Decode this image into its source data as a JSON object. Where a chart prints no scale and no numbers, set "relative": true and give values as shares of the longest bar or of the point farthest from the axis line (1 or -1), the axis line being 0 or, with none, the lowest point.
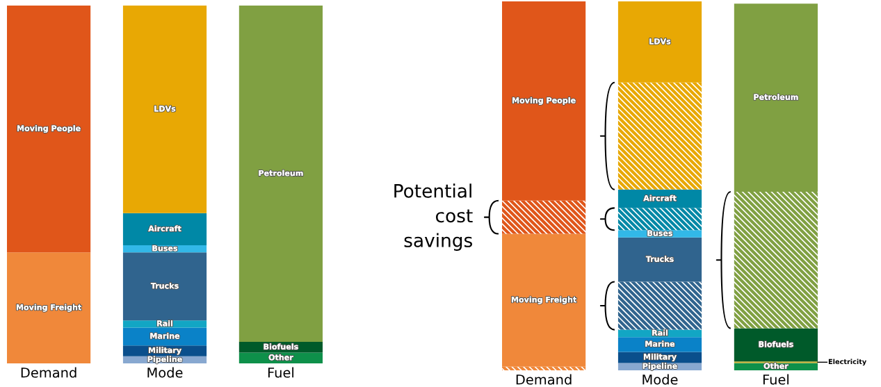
{
  "chart_data": [
    {
      "type": "bar",
      "stacked": true,
      "relative": true,
      "legend": false,
      "categories": [
        "Demand",
        "Mode",
        "Fuel"
      ],
      "series": [
        {
          "name": "Moving Freight",
          "color": "#f0883a",
          "values": [
            0.31,
            null,
            null
          ]
        },
        {
          "name": "Moving People",
          "color": "#e0561a",
          "values": [
            0.69,
            null,
            null
          ]
        },
        {
          "name": "Pipeline",
          "color": "#88a8d0",
          "values": [
            null,
            0.02,
            null
          ]
        },
        {
          "name": "Military",
          "color": "#0a4f8c",
          "values": [
            null,
            0.03,
            null
          ]
        },
        {
          "name": "Marine",
          "color": "#0a82c8",
          "values": [
            null,
            0.05,
            null
          ]
        },
        {
          "name": "Rail",
          "color": "#12a6c4",
          "values": [
            null,
            0.02,
            null
          ]
        },
        {
          "name": "Trucks",
          "color": "#30648e",
          "values": [
            null,
            0.19,
            null
          ]
        },
        {
          "name": "Buses",
          "color": "#32b8e8",
          "values": [
            null,
            0.02,
            null
          ]
        },
        {
          "name": "Aircraft",
          "color": "#0088a6",
          "values": [
            null,
            0.09,
            null
          ]
        },
        {
          "name": "LDVs",
          "color": "#e8a804",
          "values": [
            null,
            0.58,
            null
          ]
        },
        {
          "name": "Other",
          "color": "#0e904a",
          "values": [
            null,
            null,
            0.03
          ]
        },
        {
          "name": "Biofuels",
          "color": "#005a2a",
          "values": [
            null,
            null,
            0.03
          ]
        },
        {
          "name": "Petroleum",
          "color": "#80a042",
          "values": [
            null,
            null,
            0.94
          ]
        }
      ]
    },
    {
      "type": "bar",
      "stacked": true,
      "relative": true,
      "legend": false,
      "categories": [
        "Demand",
        "Mode",
        "Fuel"
      ],
      "annotations": [
        "Potential\ncost\nsavings"
      ],
      "series": [
        {
          "color": "#f0883a",
          "values": [
            0.01,
            null,
            null
          ]
        },
        {
          "name": "Moving Freight",
          "color": "#f0883a",
          "values": [
            0.36,
            null,
            null
          ]
        },
        {
          "color": "#e0561a",
          "values": [
            0.09,
            null,
            null
          ]
        },
        {
          "name": "Moving People",
          "color": "#e0561a",
          "values": [
            0.54,
            null,
            null
          ]
        },
        {
          "name": "Pipeline",
          "color": "#88a8d0",
          "values": [
            null,
            0.02,
            null
          ]
        },
        {
          "name": "Military",
          "color": "#0a4f8c",
          "values": [
            null,
            0.03,
            null
          ]
        },
        {
          "name": "Marine",
          "color": "#0a82c8",
          "values": [
            null,
            0.04,
            null
          ]
        },
        {
          "name": "Rail",
          "color": "#12a6c4",
          "values": [
            null,
            0.02,
            null
          ]
        },
        {
          "color": "#30648e",
          "values": [
            null,
            0.13,
            null
          ]
        },
        {
          "name": "Trucks",
          "color": "#30648e",
          "values": [
            null,
            0.12,
            null
          ]
        },
        {
          "name": "Buses",
          "color": "#32b8e8",
          "values": [
            null,
            0.02,
            null
          ]
        },
        {
          "color": "#0088a6",
          "values": [
            null,
            0.06,
            null
          ]
        },
        {
          "name": "Aircraft",
          "color": "#0088a6",
          "values": [
            null,
            0.05,
            null
          ]
        },
        {
          "color": "#e8a804",
          "values": [
            null,
            0.29,
            null
          ]
        },
        {
          "name": "LDVs",
          "color": "#e8a804",
          "values": [
            null,
            0.22,
            null
          ]
        },
        {
          "name": "Other",
          "color": "#0e904a",
          "values": [
            null,
            null,
            0.02
          ]
        },
        {
          "name": "Electricity",
          "color": "#c8b030",
          "values": [
            null,
            null,
            0.004
          ]
        },
        {
          "name": "Biofuels",
          "color": "#005a2a",
          "values": [
            null,
            null,
            0.09
          ]
        },
        {
          "color": "#80a042",
          "values": [
            null,
            null,
            0.37
          ]
        },
        {
          "name": "Petroleum",
          "color": "#80a042",
          "values": [
            null,
            null,
            0.51
          ]
        }
      ]
    }
  ]
}
